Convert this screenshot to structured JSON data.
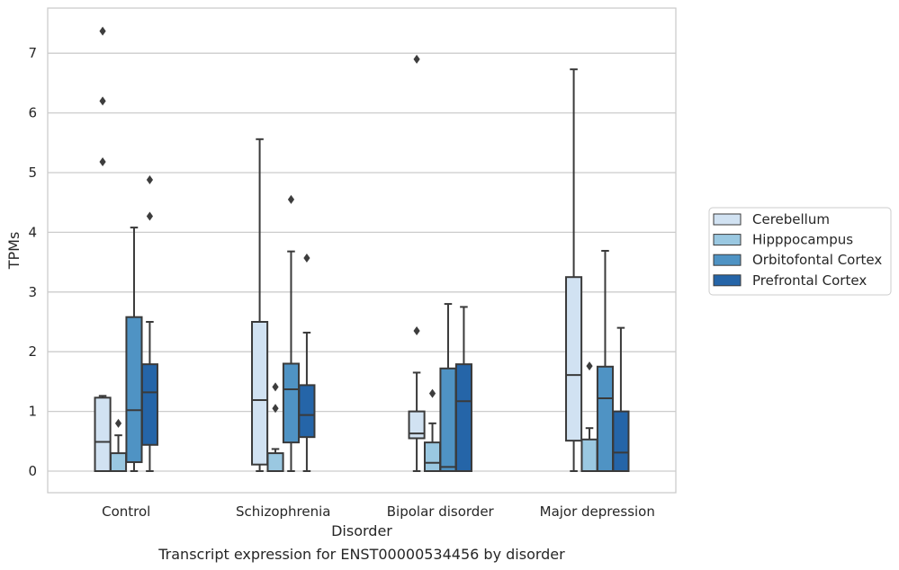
{
  "chart_data": {
    "type": "box",
    "xlabel": "Disorder",
    "ylabel": "TPMs",
    "caption": "Transcript expression for ENST00000534456 by disorder",
    "ylim": [
      -0.36,
      7.75
    ],
    "yticks": [
      0,
      1,
      2,
      3,
      4,
      5,
      6,
      7
    ],
    "grid": "horizontal",
    "legend_position": "right",
    "categories": [
      "Control",
      "Schizophrenia",
      "Bipolar disorder",
      "Major depression"
    ],
    "series": [
      {
        "name": "Cerebellum",
        "color": "#d1e2f2",
        "boxes": [
          {
            "whislo": 0.0,
            "q1": 0.0,
            "med": 0.49,
            "q3": 1.23,
            "whishi": 1.26,
            "fliers": [
              5.18,
              6.2,
              7.37
            ]
          },
          {
            "whislo": 0.0,
            "q1": 0.11,
            "med": 1.19,
            "q3": 2.5,
            "whishi": 5.56,
            "fliers": []
          },
          {
            "whislo": 0.0,
            "q1": 0.55,
            "med": 0.63,
            "q3": 1.0,
            "whishi": 1.65,
            "fliers": [
              2.35,
              6.9
            ]
          },
          {
            "whislo": 0.0,
            "q1": 0.51,
            "med": 1.61,
            "q3": 3.25,
            "whishi": 6.73,
            "fliers": []
          }
        ]
      },
      {
        "name": "Hipppocampus",
        "color": "#9ac8e1",
        "boxes": [
          {
            "whislo": 0.0,
            "q1": 0.0,
            "med": 0.0,
            "q3": 0.3,
            "whishi": 0.6,
            "fliers": [
              0.8
            ]
          },
          {
            "whislo": 0.0,
            "q1": 0.0,
            "med": 0.0,
            "q3": 0.3,
            "whishi": 0.37,
            "fliers": [
              1.05,
              1.41
            ]
          },
          {
            "whislo": 0.0,
            "q1": 0.0,
            "med": 0.14,
            "q3": 0.48,
            "whishi": 0.8,
            "fliers": [
              1.3
            ]
          },
          {
            "whislo": 0.0,
            "q1": 0.0,
            "med": 0.0,
            "q3": 0.53,
            "whishi": 0.72,
            "fliers": [
              1.76
            ]
          }
        ]
      },
      {
        "name": "Orbitofontal Cortex",
        "color": "#4f93c4",
        "boxes": [
          {
            "whislo": 0.0,
            "q1": 0.15,
            "med": 1.02,
            "q3": 2.58,
            "whishi": 4.08,
            "fliers": []
          },
          {
            "whislo": 0.0,
            "q1": 0.48,
            "med": 1.37,
            "q3": 1.8,
            "whishi": 3.68,
            "fliers": [
              4.55
            ]
          },
          {
            "whislo": 0.0,
            "q1": 0.0,
            "med": 0.07,
            "q3": 1.72,
            "whishi": 2.8,
            "fliers": []
          },
          {
            "whislo": 0.0,
            "q1": 0.0,
            "med": 1.22,
            "q3": 1.75,
            "whishi": 3.69,
            "fliers": []
          }
        ]
      },
      {
        "name": "Prefrontal Cortex",
        "color": "#2565a8",
        "boxes": [
          {
            "whislo": 0.0,
            "q1": 0.44,
            "med": 1.32,
            "q3": 1.79,
            "whishi": 2.5,
            "fliers": [
              4.27,
              4.88
            ]
          },
          {
            "whislo": 0.0,
            "q1": 0.57,
            "med": 0.94,
            "q3": 1.44,
            "whishi": 2.32,
            "fliers": [
              3.57
            ]
          },
          {
            "whislo": 0.0,
            "q1": 0.0,
            "med": 1.17,
            "q3": 1.79,
            "whishi": 2.75,
            "fliers": []
          },
          {
            "whislo": 0.0,
            "q1": 0.0,
            "med": 0.31,
            "q3": 1.0,
            "whishi": 2.4,
            "fliers": []
          }
        ]
      }
    ]
  }
}
